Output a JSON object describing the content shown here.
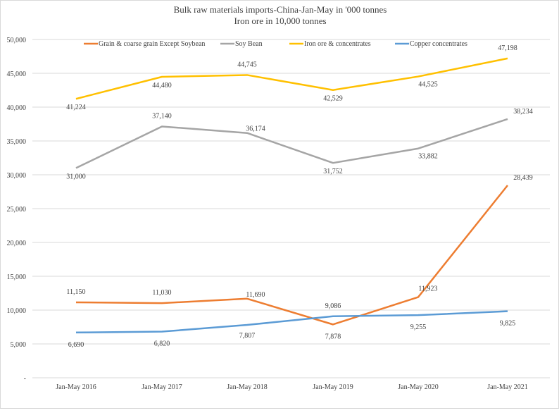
{
  "chart_data": {
    "type": "line",
    "title": "Bulk raw materials imports-China-Jan-May in '000 tonnes",
    "subtitle": "Iron ore in 10,000 tonnes",
    "xlabel": "",
    "ylabel": "",
    "categories": [
      "Jan-May 2016",
      "Jan-May 2017",
      "Jan-May 2018",
      "Jan-May 2019",
      "Jan-May 2020",
      "Jan-May 2021"
    ],
    "ylim": [
      0,
      50000
    ],
    "yticks": [
      0,
      5000,
      10000,
      15000,
      20000,
      25000,
      30000,
      35000,
      40000,
      45000,
      50000
    ],
    "ytick_labels": [
      "-",
      "5,000",
      "10,000",
      "15,000",
      "20,000",
      "25,000",
      "30,000",
      "35,000",
      "40,000",
      "45,000",
      "50,000"
    ],
    "grid": true,
    "legend": "top",
    "series": [
      {
        "name": "Grain & coarse grain Except Soybean",
        "color": "#ED7D31",
        "values": [
          11150,
          11030,
          11690,
          7878,
          11923,
          28439
        ],
        "labels": [
          "11,150",
          "11,030",
          "11,690",
          "7,878",
          "11,923",
          "28,439"
        ]
      },
      {
        "name": "Soy Bean",
        "color": "#A5A5A5",
        "values": [
          31000,
          37140,
          36174,
          31752,
          33882,
          38234
        ],
        "labels": [
          "31,000",
          "37,140",
          "36,174",
          "31,752",
          "33,882",
          "38,234"
        ]
      },
      {
        "name": "Iron ore & concentrates",
        "color": "#FFC000",
        "values": [
          41224,
          44480,
          44745,
          42529,
          44525,
          47198
        ],
        "labels": [
          "41,224",
          "44,480",
          "44,745",
          "42,529",
          "44,525",
          "47,198"
        ]
      },
      {
        "name": "Copper concentrates",
        "color": "#5B9BD5",
        "values": [
          6690,
          6820,
          7807,
          9086,
          9255,
          9825
        ],
        "labels": [
          "6,690",
          "6,820",
          "7,807",
          "9,086",
          "9,255",
          "9,825"
        ]
      }
    ]
  }
}
